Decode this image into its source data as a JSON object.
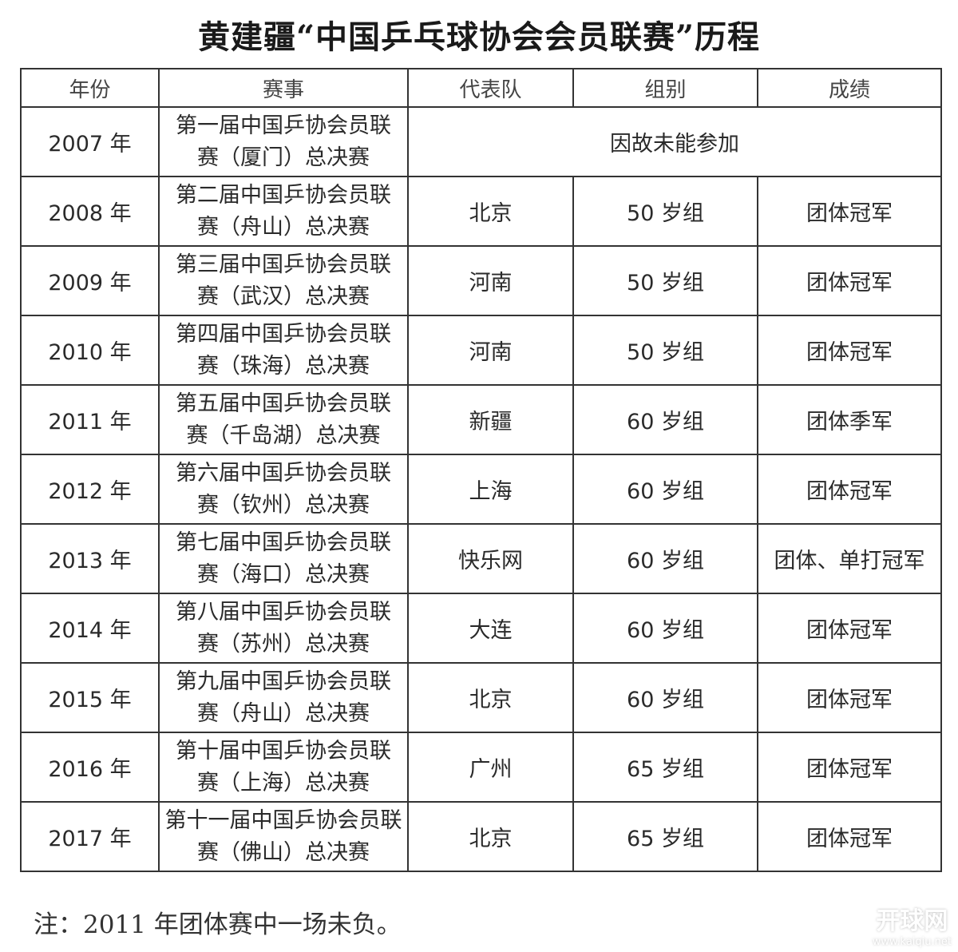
{
  "title": "黄建疆“中国乒乓球协会会员联赛”历程",
  "table": {
    "headers": [
      "年份",
      "赛事",
      "代表队",
      "组别",
      "成绩"
    ],
    "rows": [
      {
        "year": "2007 年",
        "event_line1": "第一届中国乒协会员联",
        "event_line2": "赛（厦门）总决赛",
        "merged": "因故未能参加"
      },
      {
        "year": "2008 年",
        "event_line1": "第二届中国乒协会员联",
        "event_line2": "赛（舟山）总决赛",
        "team": "北京",
        "group": "50 岁组",
        "result": "团体冠军"
      },
      {
        "year": "2009 年",
        "event_line1": "第三届中国乒协会员联",
        "event_line2": "赛（武汉）总决赛",
        "team": "河南",
        "group": "50 岁组",
        "result": "团体冠军"
      },
      {
        "year": "2010 年",
        "event_line1": "第四届中国乒协会员联",
        "event_line2": "赛（珠海）总决赛",
        "team": "河南",
        "group": "50 岁组",
        "result": "团体冠军"
      },
      {
        "year": "2011 年",
        "event_line1": "第五届中国乒协会员联",
        "event_line2": "赛（千岛湖）总决赛",
        "team": "新疆",
        "group": "60 岁组",
        "result": "团体季军"
      },
      {
        "year": "2012 年",
        "event_line1": "第六届中国乒协会员联",
        "event_line2": "赛（钦州）总决赛",
        "team": "上海",
        "group": "60 岁组",
        "result": "团体冠军"
      },
      {
        "year": "2013 年",
        "event_line1": "第七届中国乒协会员联",
        "event_line2": "赛（海口）总决赛",
        "team": "快乐网",
        "group": "60 岁组",
        "result": "团体、单打冠军"
      },
      {
        "year": "2014 年",
        "event_line1": "第八届中国乒协会员联",
        "event_line2": "赛（苏州）总决赛",
        "team": "大连",
        "group": "60 岁组",
        "result": "团体冠军"
      },
      {
        "year": "2015 年",
        "event_line1": "第九届中国乒协会员联",
        "event_line2": "赛（舟山）总决赛",
        "team": "北京",
        "group": "60 岁组",
        "result": "团体冠军"
      },
      {
        "year": "2016 年",
        "event_line1": "第十届中国乒协会员联",
        "event_line2": "赛（上海）总决赛",
        "team": "广州",
        "group": "65 岁组",
        "result": "团体冠军"
      },
      {
        "year": "2017 年",
        "event_line1": "第十一届中国乒协会员联",
        "event_line2": "赛（佛山）总决赛",
        "team": "北京",
        "group": "65 岁组",
        "result": "团体冠军"
      }
    ]
  },
  "note": "注：2011 年团体赛中一场未负。",
  "watermark": {
    "name": "开球网",
    "url": "www.kaiqiu.net"
  }
}
